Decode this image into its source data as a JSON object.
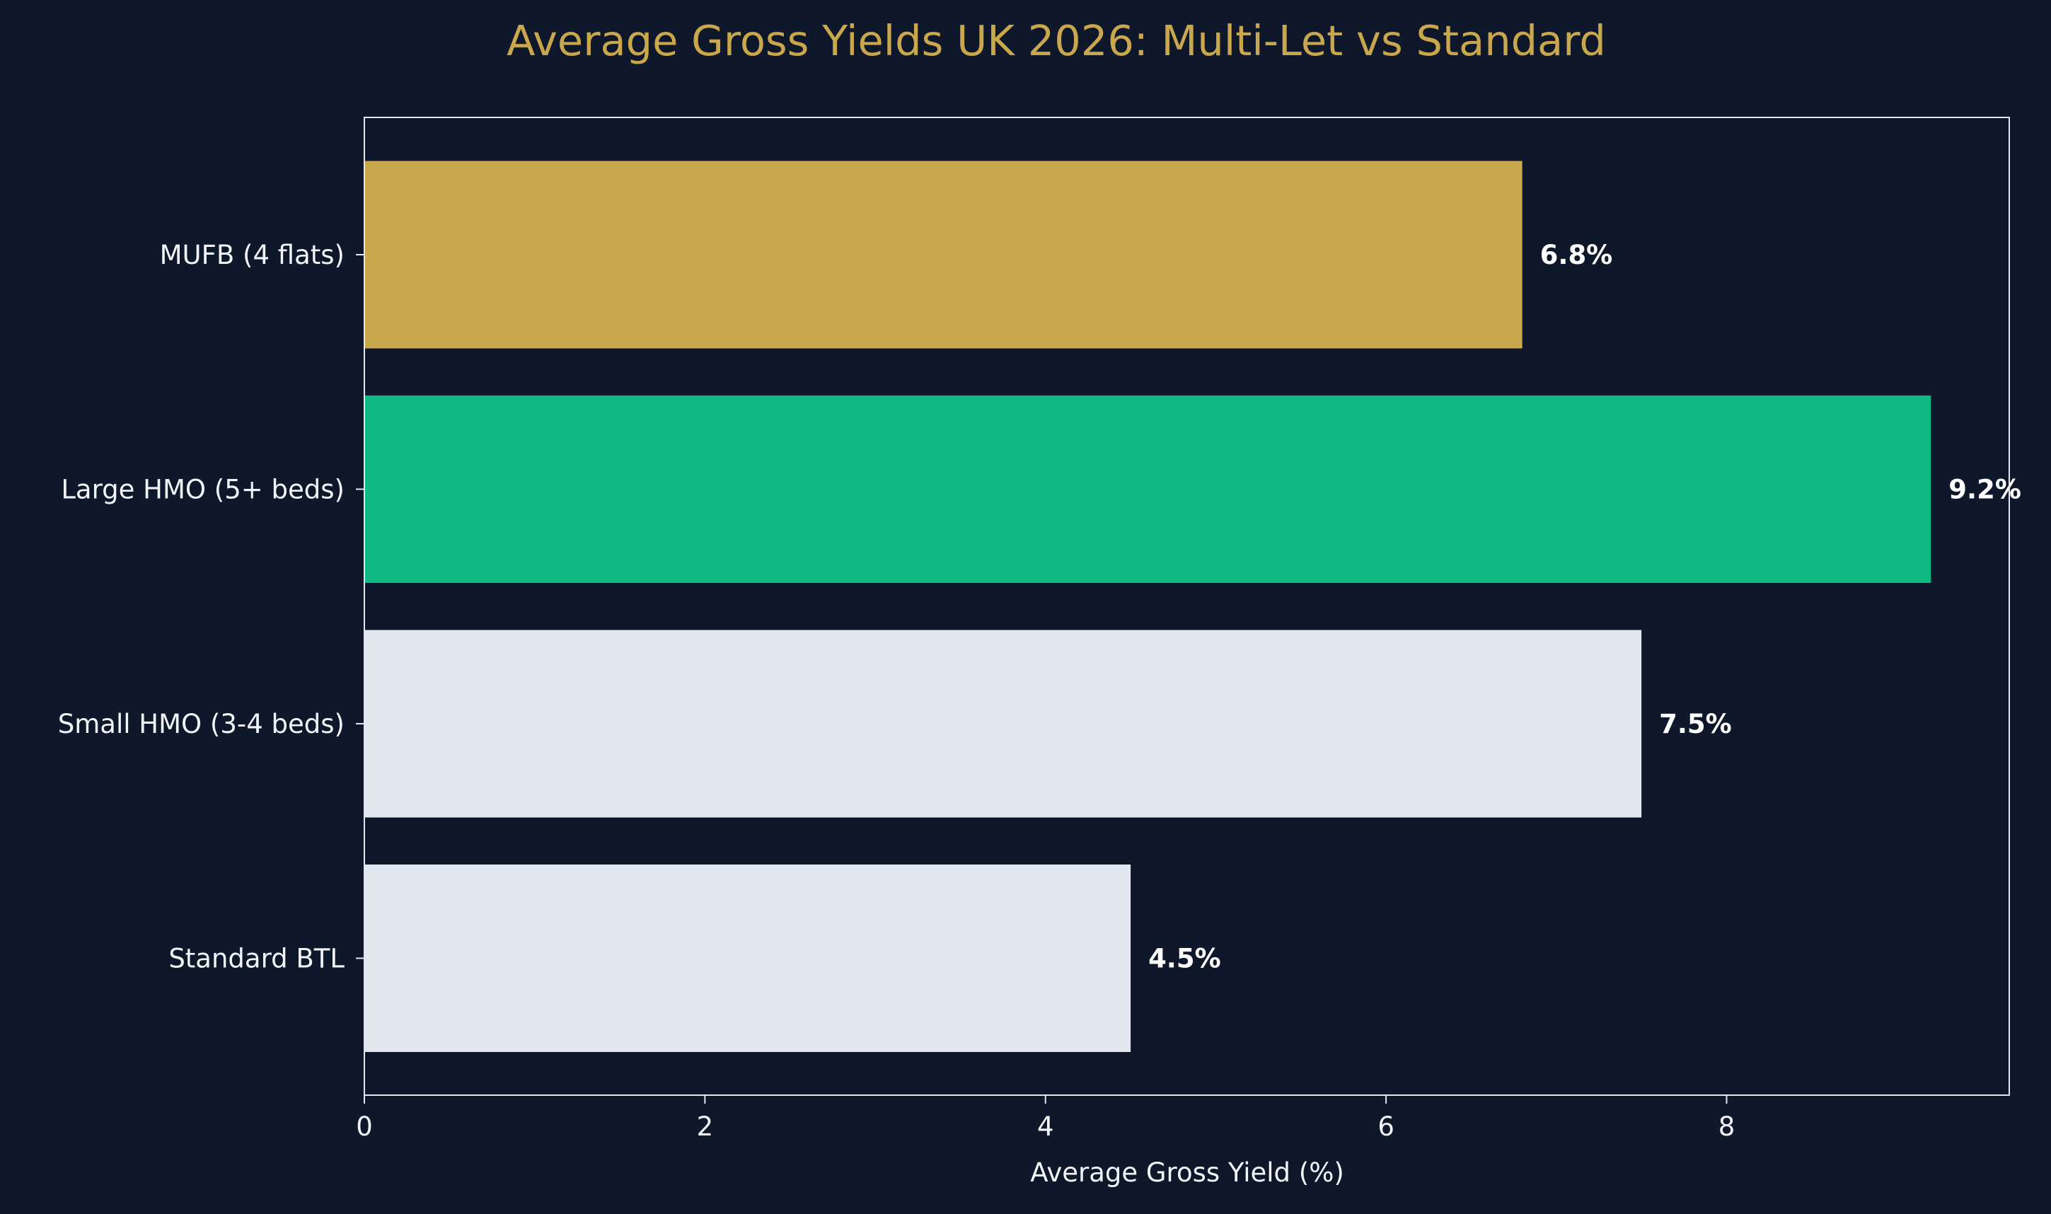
{
  "chart_data": {
    "type": "bar",
    "orientation": "horizontal",
    "title": "Average Gross Yields UK 2026: Multi-Let vs Standard",
    "xlabel": "Average Gross Yield (%)",
    "ylabel": "",
    "categories": [
      "MUFB (4 flats)",
      "Large HMO (5+ beds)",
      "Small HMO (3-4 beds)",
      "Standard BTL"
    ],
    "values": [
      6.8,
      9.2,
      7.5,
      4.5
    ],
    "data_labels": [
      "6.8%",
      "9.2%",
      "7.5%",
      "4.5%"
    ],
    "bar_colors": [
      "#c9a74c",
      "#10b981",
      "#e2e8f0",
      "#e2e8f0"
    ],
    "xlim": [
      0,
      9.66
    ],
    "xticks": [
      0,
      2,
      4,
      6,
      8
    ],
    "xtick_labels": [
      "0",
      "2",
      "4",
      "6",
      "8"
    ],
    "grid": false,
    "legend": "none"
  },
  "colors": {
    "background": "#0f172a",
    "title": "#c9a74c",
    "text": "#f1f5f9",
    "axis": "#e2e8f0",
    "data_label": "#ffffff"
  }
}
